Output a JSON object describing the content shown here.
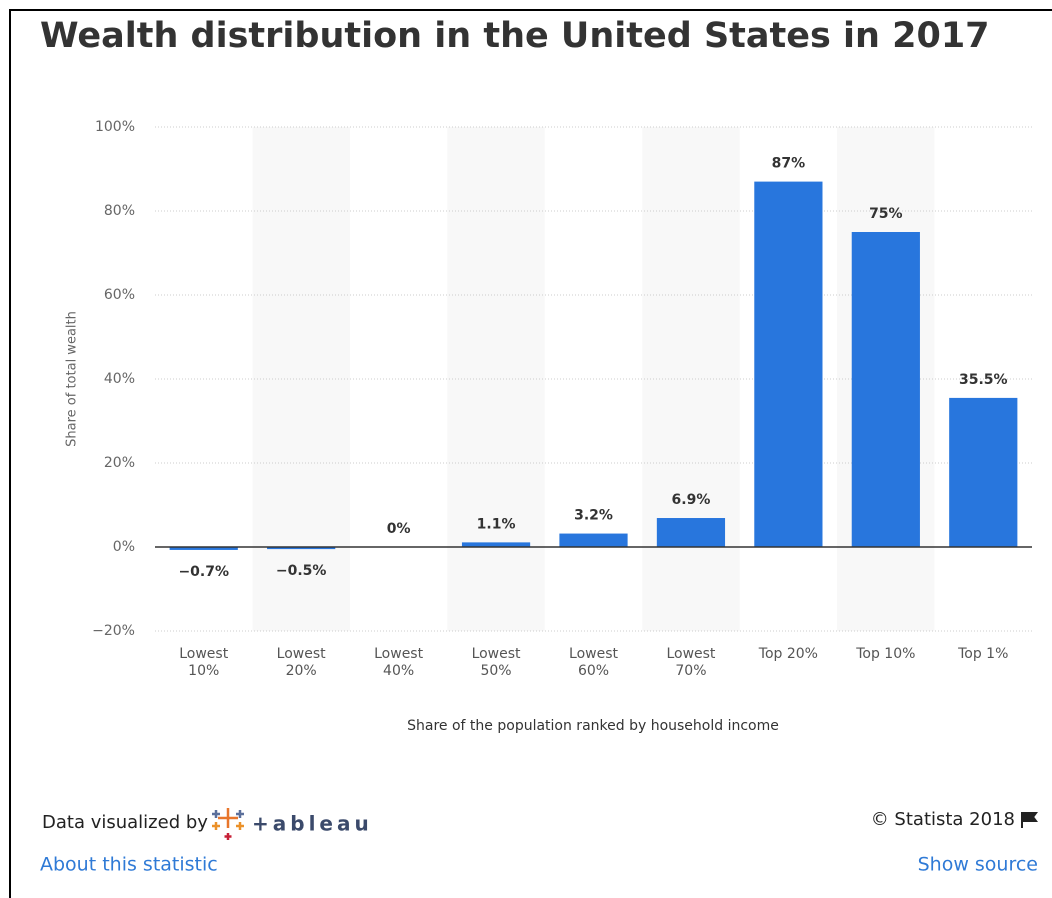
{
  "chart_data": {
    "type": "bar",
    "title": "Wealth distribution in the United States in 2017",
    "categories": [
      "Lowest\n10%",
      "Lowest\n20%",
      "Lowest\n40%",
      "Lowest\n50%",
      "Lowest\n60%",
      "Lowest\n70%",
      "Top 20%",
      "Top 10%",
      "Top 1%"
    ],
    "values": [
      -0.7,
      -0.5,
      0,
      1.1,
      3.2,
      6.9,
      87,
      75,
      35.5
    ],
    "value_labels": [
      "−0.7%",
      "−0.5%",
      "0%",
      "1.1%",
      "3.2%",
      "6.9%",
      "87%",
      "75%",
      "35.5%"
    ],
    "color": "#2876dd",
    "ylim": [
      -20,
      100
    ],
    "yticks": [
      {
        "value": -20,
        "label": "−20%"
      },
      {
        "value": 0,
        "label": "0%"
      },
      {
        "value": 20,
        "label": "20%"
      },
      {
        "value": 40,
        "label": "40%"
      },
      {
        "value": 60,
        "label": "60%"
      },
      {
        "value": 80,
        "label": "80%"
      },
      {
        "value": 100,
        "label": "100%"
      }
    ],
    "ylabel": "Share of total wealth",
    "xlabel": "Share of the population ranked by household income",
    "grid": true
  },
  "footer": {
    "visualized_by": "Data visualized by",
    "logo": "+ableau",
    "copyright": "© Statista 2018",
    "about": "About this statistic",
    "source": "Show source"
  }
}
